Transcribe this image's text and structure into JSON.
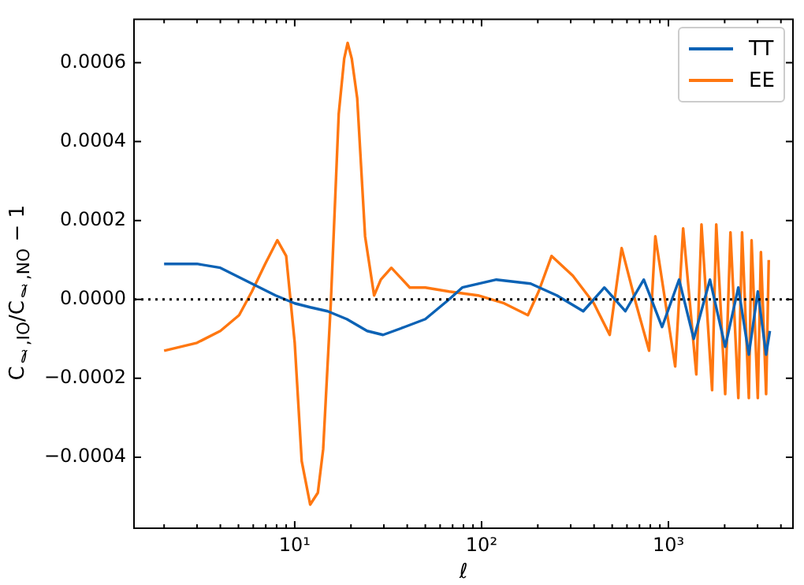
{
  "chart_data": {
    "type": "line",
    "xlabel": "ℓ",
    "ylabel": "C$_{ℓ,IO}$/C$_{ℓ,NO}$ − 1",
    "log": "x",
    "marker": "none",
    "legend": "top right",
    "xlim": [
      1.38,
      4640
    ],
    "ylim": [
      -0.00058,
      0.00071
    ],
    "xticks": [
      {
        "value": 2,
        "label": null
      },
      {
        "value": 3,
        "label": null
      },
      {
        "value": 4,
        "label": null
      },
      {
        "value": 5,
        "label": null
      },
      {
        "value": 6,
        "label": null
      },
      {
        "value": 7,
        "label": null
      },
      {
        "value": 8,
        "label": null
      },
      {
        "value": 9,
        "label": null
      },
      {
        "value": 10,
        "label": "10¹"
      },
      {
        "value": 20,
        "label": null
      },
      {
        "value": 30,
        "label": null
      },
      {
        "value": 40,
        "label": null
      },
      {
        "value": 50,
        "label": null
      },
      {
        "value": 60,
        "label": null
      },
      {
        "value": 70,
        "label": null
      },
      {
        "value": 80,
        "label": null
      },
      {
        "value": 90,
        "label": null
      },
      {
        "value": 100,
        "label": "10²"
      },
      {
        "value": 200,
        "label": null
      },
      {
        "value": 300,
        "label": null
      },
      {
        "value": 400,
        "label": null
      },
      {
        "value": 500,
        "label": null
      },
      {
        "value": 600,
        "label": null
      },
      {
        "value": 700,
        "label": null
      },
      {
        "value": 800,
        "label": null
      },
      {
        "value": 900,
        "label": null
      },
      {
        "value": 1000,
        "label": "10³"
      },
      {
        "value": 2000,
        "label": null
      },
      {
        "value": 3000,
        "label": null
      },
      {
        "value": 4000,
        "label": null
      }
    ],
    "yticks": [
      {
        "value": -0.0004,
        "label": "−0.0004"
      },
      {
        "value": -0.0002,
        "label": "−0.0002"
      },
      {
        "value": 0,
        "label": "0.0000"
      },
      {
        "value": 0.0002,
        "label": "0.0002"
      },
      {
        "value": 0.0004,
        "label": "0.0004"
      },
      {
        "value": 0.0006,
        "label": "0.0006"
      }
    ],
    "ref_lines": [
      {
        "axis": "y",
        "value": 0,
        "color": "#000000",
        "line_style": "dotted"
      }
    ],
    "series": [
      {
        "name": "TT",
        "color": "#0b62b5",
        "x": [
          2,
          3,
          4,
          5.9,
          7.9,
          10,
          12.1,
          15,
          19,
          24.4,
          29.7,
          38.7,
          50,
          67,
          78.8,
          120,
          183,
          253,
          350,
          454,
          588,
          738,
          925,
          1140,
          1366,
          1668,
          2013,
          2367,
          2694,
          3008,
          3333,
          3490
        ],
        "values": [
          9e-05,
          9e-05,
          8e-05,
          4e-05,
          1e-05,
          -1e-05,
          -2e-05,
          -3e-05,
          -5e-05,
          -8e-05,
          -9e-05,
          -7e-05,
          -5e-05,
          0,
          3e-05,
          5e-05,
          4e-05,
          1e-05,
          -3e-05,
          3e-05,
          -3e-05,
          5e-05,
          -7e-05,
          5e-05,
          -0.0001,
          5e-05,
          -0.00012,
          3e-05,
          -0.00014,
          2e-05,
          -0.00014,
          -8e-05
        ]
      },
      {
        "name": "EE",
        "color": "#ff7710",
        "x": [
          2,
          3,
          4,
          5.04,
          5.9,
          6.95,
          8.07,
          9,
          10,
          10.9,
          12.1,
          13.3,
          14.2,
          15.6,
          17.2,
          18.4,
          19.2,
          20.2,
          21.6,
          23.8,
          26.6,
          28.9,
          32.9,
          41.3,
          50,
          67,
          95.7,
          132,
          177,
          202,
          237,
          308,
          399,
          485,
          562,
          670,
          788,
          851,
          1087,
          1199,
          1410,
          1503,
          1713,
          1803,
          2013,
          2148,
          2367,
          2478,
          2694,
          2786,
          3008,
          3126,
          3333,
          3443
        ],
        "values": [
          -0.00013,
          -0.00011,
          -8e-05,
          -4e-05,
          2e-05,
          9e-05,
          0.00015,
          0.00011,
          -0.00011,
          -0.00041,
          -0.00052,
          -0.00049,
          -0.00038,
          -1e-05,
          0.00047,
          0.00061,
          0.00065,
          0.00061,
          0.00051,
          0.00016,
          1e-05,
          5e-05,
          8e-05,
          3e-05,
          3e-05,
          2e-05,
          1e-05,
          -1e-05,
          -4e-05,
          2e-05,
          0.00011,
          6e-05,
          -1e-05,
          -9e-05,
          0.00013,
          -1e-05,
          -0.00013,
          0.00016,
          -0.00017,
          0.00018,
          -0.00019,
          0.00019,
          -0.00023,
          0.00019,
          -0.00024,
          0.00017,
          -0.00025,
          0.00017,
          -0.00025,
          0.00015,
          -0.00025,
          0.00012,
          -0.00024,
          0.0001
        ]
      }
    ]
  }
}
